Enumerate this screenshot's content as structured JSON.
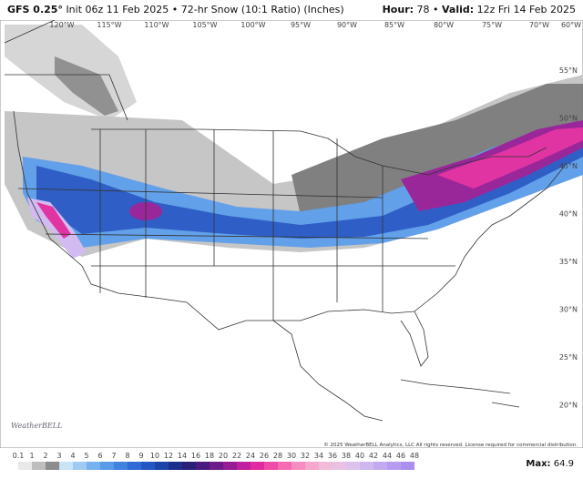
{
  "header": {
    "model": "GFS 0.25°",
    "description": "Init 06z 11 Feb 2025 • 72-hr Snow (10:1 Ratio) (Inches)",
    "hour_label": "Hour:",
    "hour": "78 •",
    "valid_label": "Valid:",
    "valid": "12z Fri 14 Feb 2025"
  },
  "map": {
    "lon_labels": [
      "120°W",
      "115°W",
      "110°W",
      "105°W",
      "100°W",
      "95°W",
      "90°W",
      "85°W",
      "80°W",
      "75°W",
      "70°W",
      "60°W"
    ],
    "lat_labels": [
      "55°N",
      "50°N",
      "45°N",
      "40°N",
      "35°N",
      "30°N",
      "25°N",
      "20°N"
    ],
    "logo": "WeatherBELL",
    "copyright": "© 2025 WeatherBELL Analytics, LLC All rights reserved. License required for commercial distribution."
  },
  "legend": {
    "labels": [
      "0.1",
      "1",
      "2",
      "3",
      "4",
      "5",
      "6",
      "7",
      "8",
      "9",
      "10",
      "12",
      "14",
      "16",
      "18",
      "20",
      "22",
      "24",
      "26",
      "28",
      "30",
      "32",
      "34",
      "36",
      "38",
      "40",
      "42",
      "44",
      "46",
      "48"
    ],
    "colors": [
      "#e8e8e8",
      "#bdbdbd",
      "#8c8c8c",
      "#c9e3f7",
      "#9fcbf2",
      "#78b2ee",
      "#5a9be8",
      "#4283e0",
      "#2f6bd6",
      "#2457c4",
      "#1c44a8",
      "#1a308c",
      "#2a1f78",
      "#4a1a80",
      "#6e1a8a",
      "#951c95",
      "#c0209f",
      "#e02a9f",
      "#f04aa8",
      "#f56cb4",
      "#f78cc0",
      "#f7a8cc",
      "#f2bcd9",
      "#e9c2e3",
      "#ddc2ec",
      "#cfb8f0",
      "#c2aaf0",
      "#b69cf0",
      "#aa8ff0"
    ],
    "max_label": "Max:",
    "max": "64.9"
  }
}
